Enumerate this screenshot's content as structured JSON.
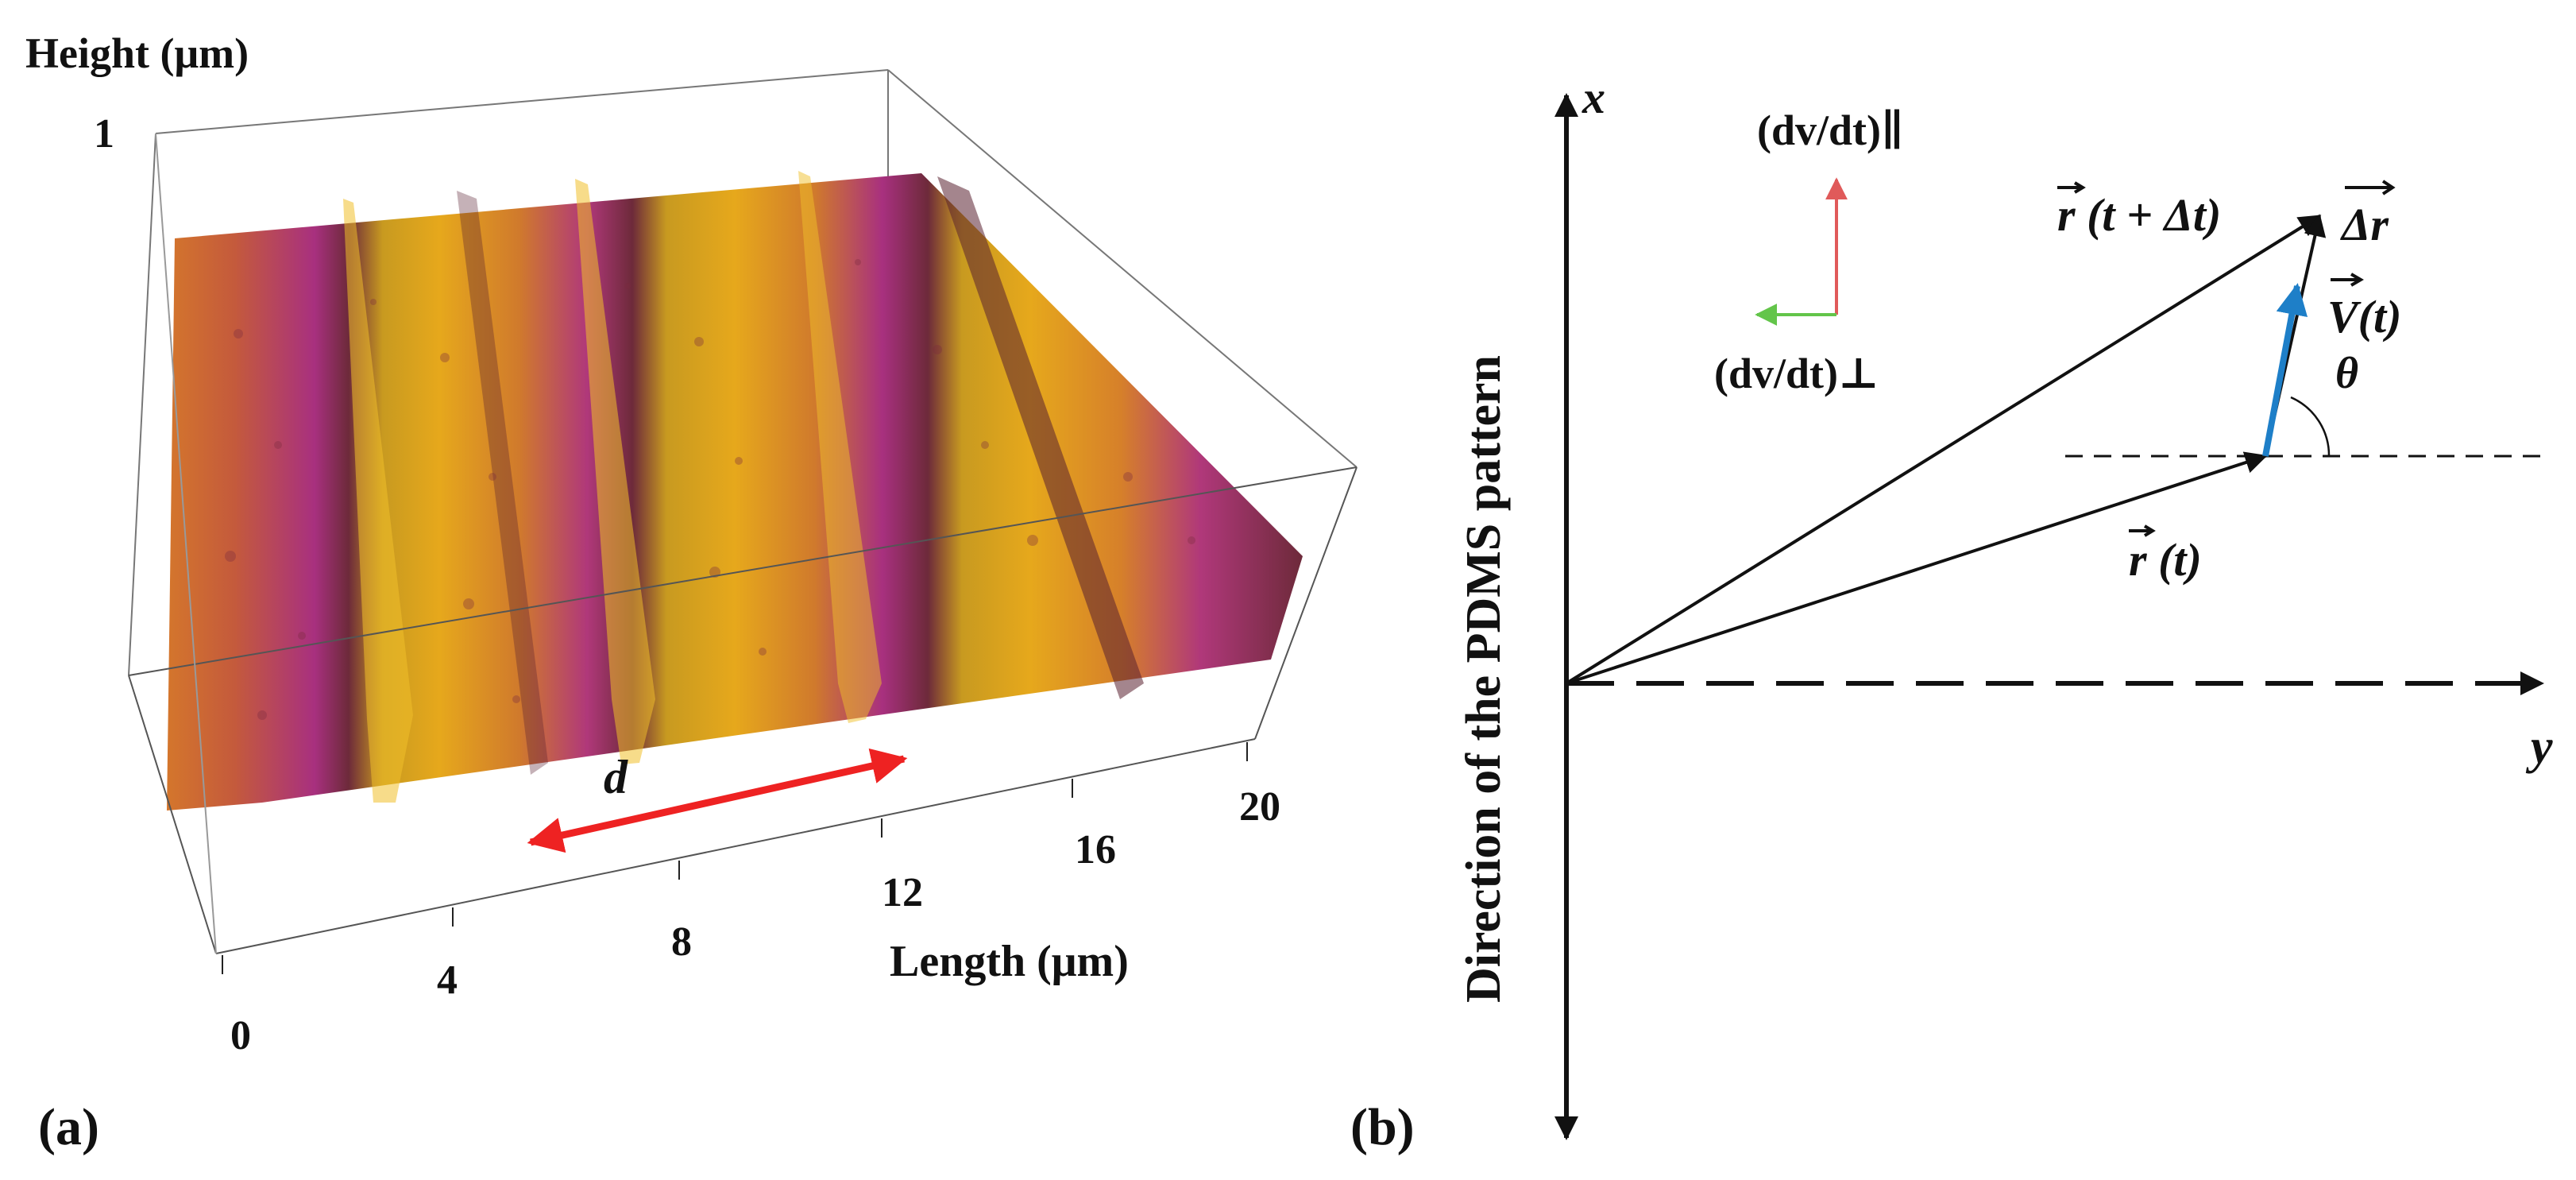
{
  "panel_a": {
    "label": "(a)",
    "z_axis_title": "Height (μm)",
    "z_tick": "1",
    "x_axis_title": "Length (μm)",
    "x_ticks": [
      "0",
      "4",
      "8",
      "12",
      "16",
      "20"
    ],
    "period_label": "d"
  },
  "panel_b": {
    "label": "(b)",
    "x_axis_label": "x",
    "y_axis_label": "y",
    "pattern_direction_label": "Direction of the PDMS pattern",
    "accel_parallel_label": "(dv/dt)∥",
    "accel_perp_label": "(dv/dt)⊥",
    "r_t_label": "r (t)",
    "r_t_dt_label": "r (t + Δt)",
    "delta_r_label": "Δr",
    "velocity_label": "V(t)",
    "angle_label": "θ"
  },
  "colors": {
    "parallel_arrow": "#e05a5a",
    "perp_arrow": "#63c54a",
    "velocity_arrow": "#1e7fc8",
    "period_arrow": "#ee2222",
    "ridge_top": "#e6a81c",
    "groove": "#a8307f"
  }
}
